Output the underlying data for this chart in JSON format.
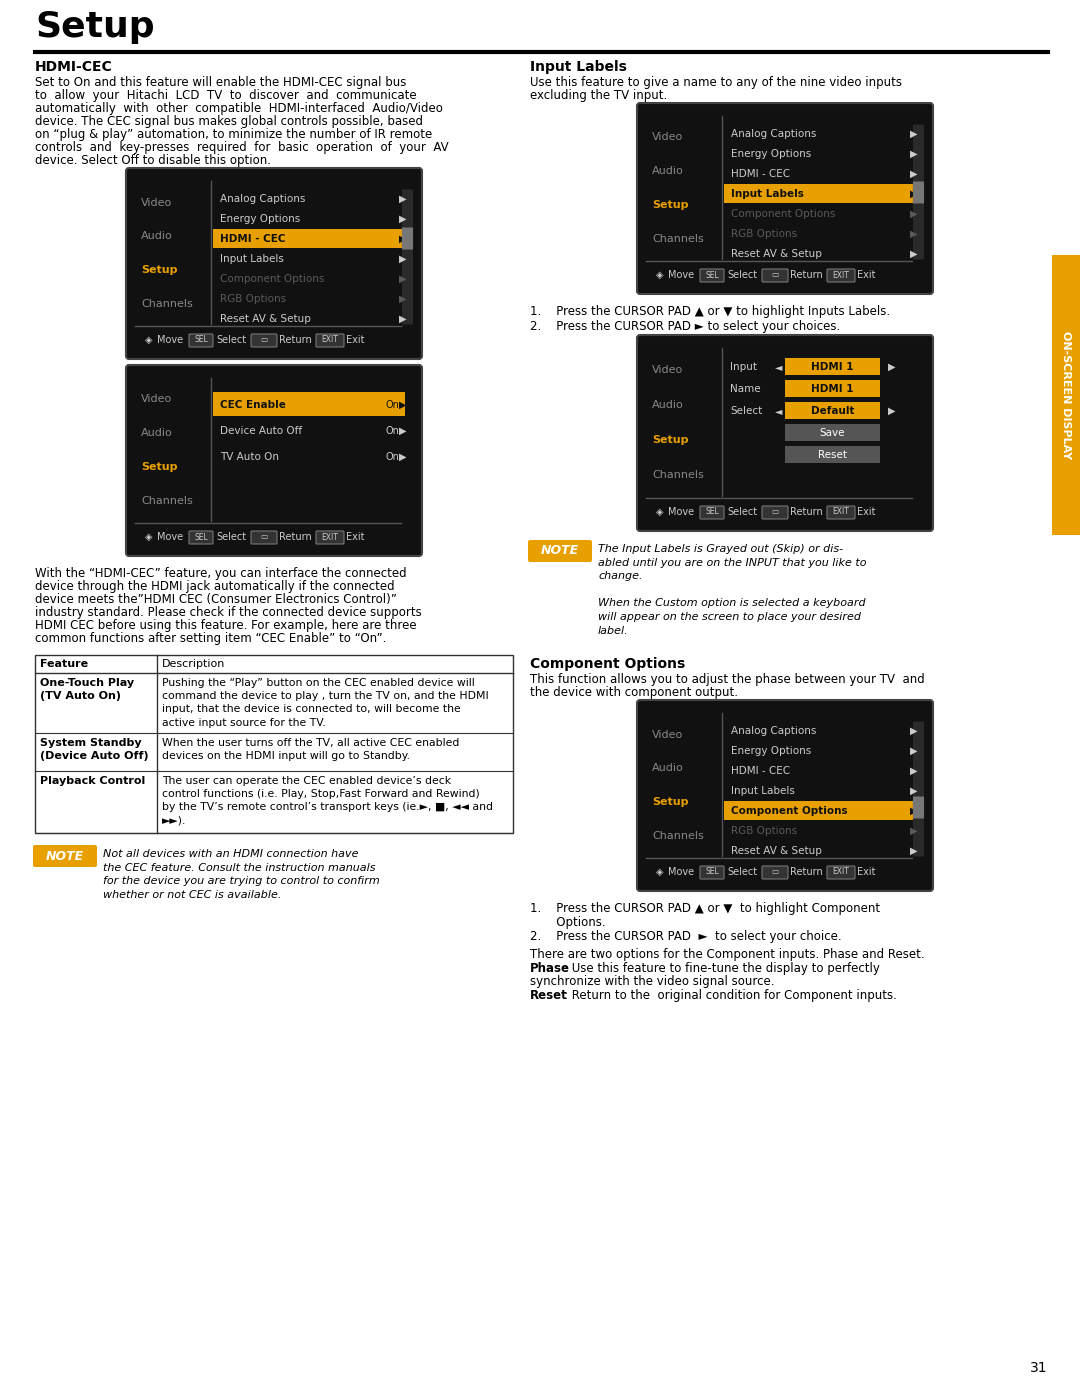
{
  "page_bg": "#ffffff",
  "title": "Setup",
  "orange": "#e8a000",
  "gray_text": "#888888",
  "dark_gray": "#555555",
  "screen_bg": "#111111",
  "menu_right_items": [
    "Analog Captions",
    "Energy Options",
    "HDMI - CEC",
    "Input Labels",
    "Component Options",
    "RGB Options",
    "Reset AV & Setup"
  ],
  "right_tab_text": "ON-SCREEN DISPLAY",
  "section1_heading": "HDMI-CEC",
  "section1_body_lines": [
    "Set to On and this feature will enable the HDMI-CEC signal bus",
    "to  allow  your  Hitachi  LCD  TV  to  discover  and  communicate",
    "automatically  with  other  compatible  HDMI-interfaced  Audio/Video",
    "device. The CEC signal bus makes global controls possible, based",
    "on “plug & play” automation, to minimize the number of IR remote",
    "controls  and  key-presses  required  for  basic  operation  of  your  AV",
    "device. Select Off to disable this option."
  ],
  "section2_heading": "Input Labels",
  "section2_body_lines": [
    "Use this feature to give a name to any of the nine video inputs",
    "excluding the TV input."
  ],
  "section3_heading": "Component Options",
  "section3_body_lines": [
    "This function allows you to adjust the phase between your TV  and",
    "the device with component output."
  ],
  "cec_submenu_items": [
    [
      "CEC Enable",
      "On"
    ],
    [
      "Device Auto Off",
      "On"
    ],
    [
      "TV Auto On",
      "On"
    ]
  ],
  "hdmi_desc_lines": [
    "With the “HDMI-CEC” feature, you can interface the connected",
    "device through the HDMI jack automatically if the connected",
    "device meets the”HDMI CEC (Consumer Electronics Control)”",
    "industry standard. Please check if the connected device supports",
    "HDMI CEC before using this feature. For example, here are three",
    "common functions after setting item “CEC Enable” to “On”."
  ],
  "table_header": [
    "Feature",
    "Description"
  ],
  "table_rows": [
    {
      "feature": "One-Touch Play\n(TV Auto On)",
      "desc": "Pushing the “Play” button on the CEC enabled device will\ncommand the device to play , turn the TV on, and the HDMI\ninput, that the device is connected to, will become the\nactive input source for the TV."
    },
    {
      "feature": "System Standby\n(Device Auto Off)",
      "desc": "When the user turns off the TV, all active CEC enabled\ndevices on the HDMI input will go to Standby."
    },
    {
      "feature": "Playback Control",
      "desc": "The user can operate the CEC enabled device’s deck\ncontrol functions (i.e. Play, Stop,Fast Forward and Rewind)\nby the TV’s remote control’s transport keys (ie.►, ■, ◄◄ and\n►►)."
    }
  ],
  "note_hdmi_lines": [
    "Not all devices with an HDMI connection have",
    "the CEC feature. Consult the instruction manuals",
    "for the device you are trying to control to confirm",
    "whether or not CEC is available."
  ],
  "note_il_lines": [
    "The Input Labels is Grayed out (Skip) or dis-",
    "abled until you are on the INPUT that you like to",
    "change.",
    "",
    "When the Custom option is selected a keyboard",
    "will appear on the screen to place your desired",
    "label."
  ],
  "step_il_1": "1.    Press the CURSOR PAD ▲ or ▼ to highlight Inputs Labels.",
  "step_il_2": "2.    Press the CURSOR PAD ► to select your choices.",
  "step_co_1a": "1.    Press the CURSOR PAD ▲ or ▼  to highlight Component",
  "step_co_1b": "       Options.",
  "step_co_2": "2.    Press the CURSOR PAD  ►  to select your choice.",
  "phase_line": "There are two options for the Component inputs. Phase and Reset.",
  "reset_line": ": Return to the  original condition for Component inputs.",
  "page_number": "31"
}
